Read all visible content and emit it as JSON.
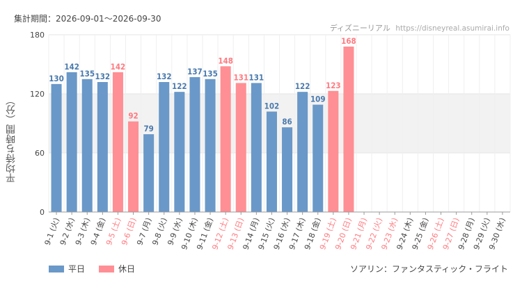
{
  "header": {
    "period_label": "集計期間：2026-09-01～2026-09-30",
    "site_name": "ディズニーリアル",
    "site_url": "https://disneyreal.asumirai.info"
  },
  "attraction_name": "ソアリン：ファンタスティック・フライト",
  "colors": {
    "weekday": "#6a98c8",
    "holiday": "#ff8f94",
    "weekday_text": "#4a7aad",
    "holiday_text": "#ff7a80",
    "band": "#f2f2f2",
    "axis_text": "#444444"
  },
  "chart_data": {
    "type": "bar",
    "ylabel": "平均待ち時間（分）",
    "ylim": [
      0,
      180
    ],
    "yticks": [
      0,
      60,
      120,
      180
    ],
    "highlight_band": [
      60,
      120
    ],
    "grid": true,
    "legend_position": "bottom-left",
    "legend": [
      {
        "name": "平日",
        "key": "weekday"
      },
      {
        "name": "休日",
        "key": "holiday"
      }
    ],
    "categories": [
      "9-1 (火)",
      "9-2 (水)",
      "9-3 (木)",
      "9-4 (金)",
      "9-5 (土)",
      "9-6 (日)",
      "9-7 (月)",
      "9-8 (火)",
      "9-9 (水)",
      "9-10 (木)",
      "9-11 (金)",
      "9-12 (土)",
      "9-13 (日)",
      "9-14 (月)",
      "9-15 (火)",
      "9-16 (水)",
      "9-17 (木)",
      "9-18 (金)",
      "9-19 (土)",
      "9-20 (日)",
      "9-21 (月)",
      "9-22 (火)",
      "9-23 (水)",
      "9-24 (木)",
      "9-25 (金)",
      "9-26 (土)",
      "9-27 (日)",
      "9-28 (月)",
      "9-29 (火)",
      "9-30 (水)"
    ],
    "values": [
      130,
      142,
      135,
      132,
      142,
      92,
      79,
      132,
      122,
      137,
      135,
      148,
      131,
      131,
      102,
      86,
      122,
      109,
      123,
      168,
      null,
      null,
      null,
      null,
      null,
      null,
      null,
      null,
      null,
      null
    ],
    "day_type": [
      "weekday",
      "weekday",
      "weekday",
      "weekday",
      "holiday",
      "holiday",
      "weekday",
      "weekday",
      "weekday",
      "weekday",
      "weekday",
      "holiday",
      "holiday",
      "weekday",
      "weekday",
      "weekday",
      "weekday",
      "weekday",
      "holiday",
      "holiday",
      "holiday",
      "holiday",
      "holiday",
      "weekday",
      "weekday",
      "holiday",
      "holiday",
      "weekday",
      "weekday",
      "weekday"
    ]
  }
}
